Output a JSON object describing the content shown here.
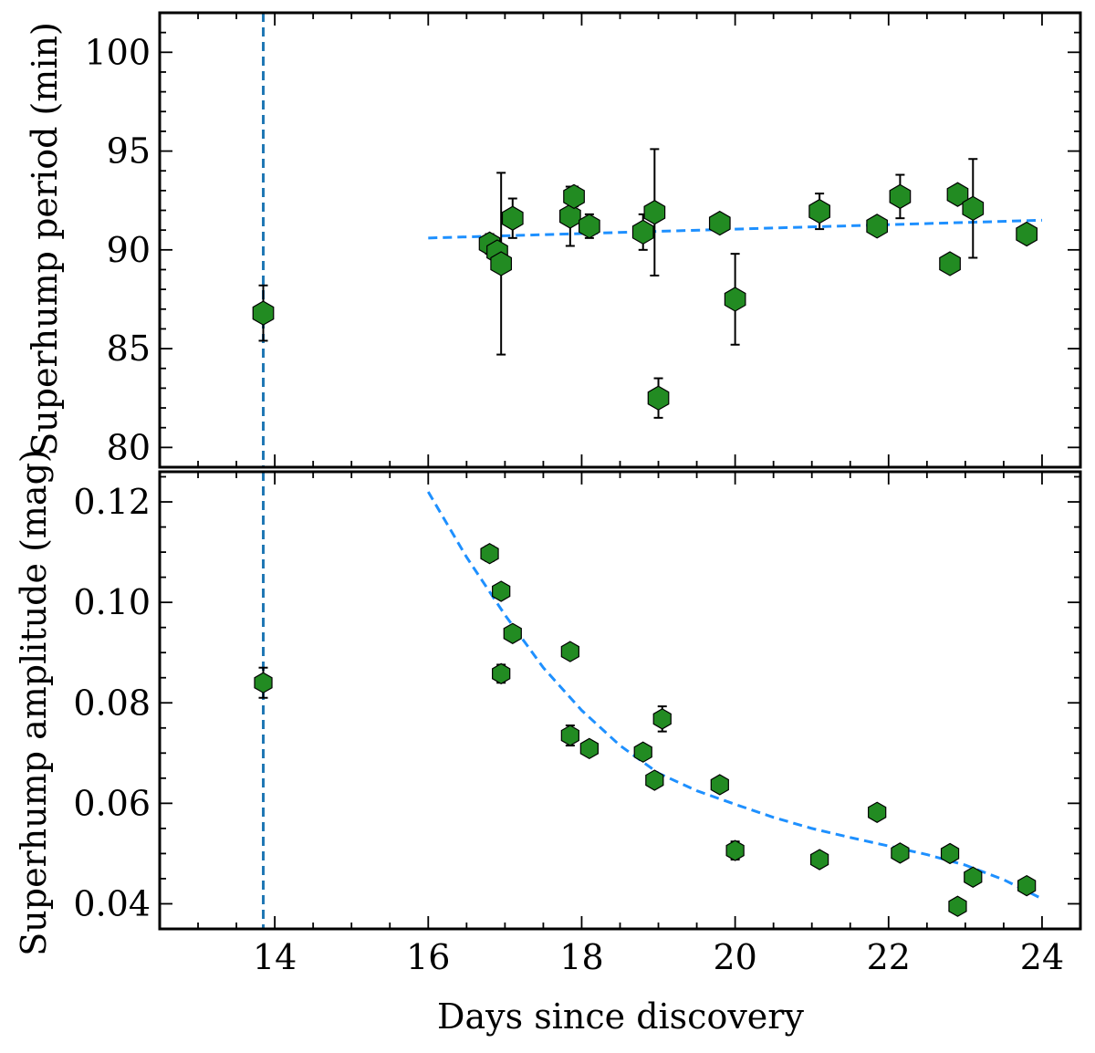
{
  "figure": {
    "xlabel": "Days since discovery",
    "x_ticks": [
      14,
      16,
      18,
      20,
      22,
      24
    ],
    "xlim": [
      12.5,
      24.5
    ],
    "colors": {
      "marker": "#228b22",
      "fit_line": "#1e90ff",
      "vline": "#1f77b4"
    }
  },
  "chart_data": [
    {
      "type": "scatter",
      "panel": "top",
      "ylabel": "Superhump period (min)",
      "ylim": [
        79,
        102
      ],
      "y_ticks": [
        80,
        85,
        90,
        95,
        100
      ],
      "vline_x": 13.85,
      "series": [
        {
          "name": "period",
          "points": [
            {
              "x": 13.85,
              "y": 86.8,
              "err": 1.4
            },
            {
              "x": 16.8,
              "y": 90.3,
              "err": 0.5
            },
            {
              "x": 16.9,
              "y": 89.9,
              "err": 0.5
            },
            {
              "x": 16.95,
              "y": 89.3,
              "err": 4.6
            },
            {
              "x": 17.1,
              "y": 91.6,
              "err": 1.0
            },
            {
              "x": 17.85,
              "y": 91.7,
              "err": 1.5
            },
            {
              "x": 17.9,
              "y": 92.7,
              "err": 0.5
            },
            {
              "x": 18.1,
              "y": 91.2,
              "err": 0.6
            },
            {
              "x": 18.8,
              "y": 90.9,
              "err": 0.9
            },
            {
              "x": 18.95,
              "y": 91.9,
              "err": 3.2
            },
            {
              "x": 19.0,
              "y": 82.5,
              "err": 1.0
            },
            {
              "x": 19.8,
              "y": 91.35,
              "err": 0.4
            },
            {
              "x": 20.0,
              "y": 87.5,
              "err": 2.3
            },
            {
              "x": 21.1,
              "y": 91.95,
              "err": 0.9
            },
            {
              "x": 21.85,
              "y": 91.2,
              "err": 0.4
            },
            {
              "x": 22.15,
              "y": 92.7,
              "err": 1.1
            },
            {
              "x": 22.8,
              "y": 89.3,
              "err": 0.4
            },
            {
              "x": 22.9,
              "y": 92.8,
              "err": 0.4
            },
            {
              "x": 23.1,
              "y": 92.1,
              "err": 2.5
            },
            {
              "x": 23.8,
              "y": 90.8,
              "err": 0.4
            }
          ]
        }
      ],
      "fit": {
        "x": [
          16,
          24
        ],
        "y": [
          90.6,
          91.5
        ]
      }
    },
    {
      "type": "scatter",
      "panel": "bottom",
      "ylabel": "Superhump amplitude (mag)",
      "ylim": [
        0.035,
        0.126
      ],
      "y_ticks": [
        "0.04",
        "0.06",
        "0.08",
        "0.10",
        "0.12"
      ],
      "vline_x": 13.85,
      "series": [
        {
          "name": "amplitude",
          "points": [
            {
              "x": 13.85,
              "y": 0.084,
              "err": 0.003
            },
            {
              "x": 16.8,
              "y": 0.1097,
              "err": 0.0015
            },
            {
              "x": 16.95,
              "y": 0.1022,
              "err": 0.0012
            },
            {
              "x": 16.95,
              "y": 0.0858,
              "err": 0.0018
            },
            {
              "x": 17.1,
              "y": 0.0938,
              "err": 0.001
            },
            {
              "x": 17.85,
              "y": 0.0735,
              "err": 0.002
            },
            {
              "x": 17.85,
              "y": 0.0902,
              "err": 0.001
            },
            {
              "x": 18.1,
              "y": 0.0709,
              "err": 0.001
            },
            {
              "x": 18.8,
              "y": 0.0702,
              "err": 0.001
            },
            {
              "x": 18.95,
              "y": 0.0646,
              "err": 0.001
            },
            {
              "x": 19.05,
              "y": 0.0768,
              "err": 0.0025
            },
            {
              "x": 19.8,
              "y": 0.0637,
              "err": 0.001
            },
            {
              "x": 20.0,
              "y": 0.0506,
              "err": 0.0018
            },
            {
              "x": 21.1,
              "y": 0.0488,
              "err": 0.001
            },
            {
              "x": 21.85,
              "y": 0.0582,
              "err": 0.001
            },
            {
              "x": 22.15,
              "y": 0.0501,
              "err": 0.001
            },
            {
              "x": 22.8,
              "y": 0.05,
              "err": 0.001
            },
            {
              "x": 22.9,
              "y": 0.0395,
              "err": 0.001
            },
            {
              "x": 23.1,
              "y": 0.0453,
              "err": 0.001
            },
            {
              "x": 23.8,
              "y": 0.0436,
              "err": 0.001
            }
          ]
        }
      ],
      "fit": {
        "x": [
          16,
          16.5,
          17,
          17.5,
          18,
          18.5,
          19,
          19.5,
          20,
          20.5,
          21,
          21.5,
          22,
          22.5,
          23,
          23.5,
          24
        ],
        "y": [
          0.122,
          0.109,
          0.0975,
          0.087,
          0.0785,
          0.0715,
          0.066,
          0.0625,
          0.0598,
          0.0572,
          0.055,
          0.0532,
          0.0515,
          0.0498,
          0.0477,
          0.0448,
          0.041
        ]
      }
    }
  ]
}
